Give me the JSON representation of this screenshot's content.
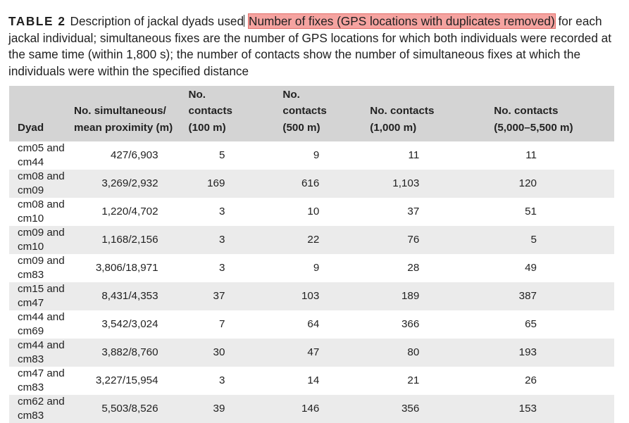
{
  "caption": {
    "label": "TABLE 2",
    "text_before": "Description of jackal dyads used",
    "highlighted": "Number of fixes (GPS locations with duplicates removed)",
    "text_after": " for each jackal individual; simultaneous fixes are the number of GPS locations for which both individuals were recorded at the same time (within 1,800 s); the number of contacts show the number of simultaneous fixes at which the individuals were within the specified distance"
  },
  "colors": {
    "highlight": "#f5a3a0",
    "header_bg": "#d4d4d4",
    "stripe_bg": "#ebebeb"
  },
  "table": {
    "headers": [
      [
        "Dyad"
      ],
      [
        "No. simultaneous/",
        "mean proximity (m)"
      ],
      [
        "No.",
        "contacts",
        "(100 m)"
      ],
      [
        "No.",
        "contacts",
        "(500 m)"
      ],
      [
        "No. contacts",
        "(1,000 m)"
      ],
      [
        "No. contacts",
        "(5,000–5,500 m)"
      ]
    ],
    "rows": [
      [
        "cm05 and cm44",
        "427/6,903",
        "5",
        "9",
        "11",
        "11"
      ],
      [
        "cm08 and cm09",
        "3,269/2,932",
        "169",
        "616",
        "1,103",
        "120"
      ],
      [
        "cm08 and cm10",
        "1,220/4,702",
        "3",
        "10",
        "37",
        "51"
      ],
      [
        "cm09 and cm10",
        "1,168/2,156",
        "3",
        "22",
        "76",
        "5"
      ],
      [
        "cm09 and cm83",
        "3,806/18,971",
        "3",
        "9",
        "28",
        "49"
      ],
      [
        "cm15 and cm47",
        "8,431/4,353",
        "37",
        "103",
        "189",
        "387"
      ],
      [
        "cm44 and cm69",
        "3,542/3,024",
        "7",
        "64",
        "366",
        "65"
      ],
      [
        "cm44 and cm83",
        "3,882/8,760",
        "30",
        "47",
        "80",
        "193"
      ],
      [
        "cm47 and cm83",
        "3,227/15,954",
        "3",
        "14",
        "21",
        "26"
      ],
      [
        "cm62 and cm83",
        "5,503/8,526",
        "39",
        "146",
        "356",
        "153"
      ]
    ]
  }
}
